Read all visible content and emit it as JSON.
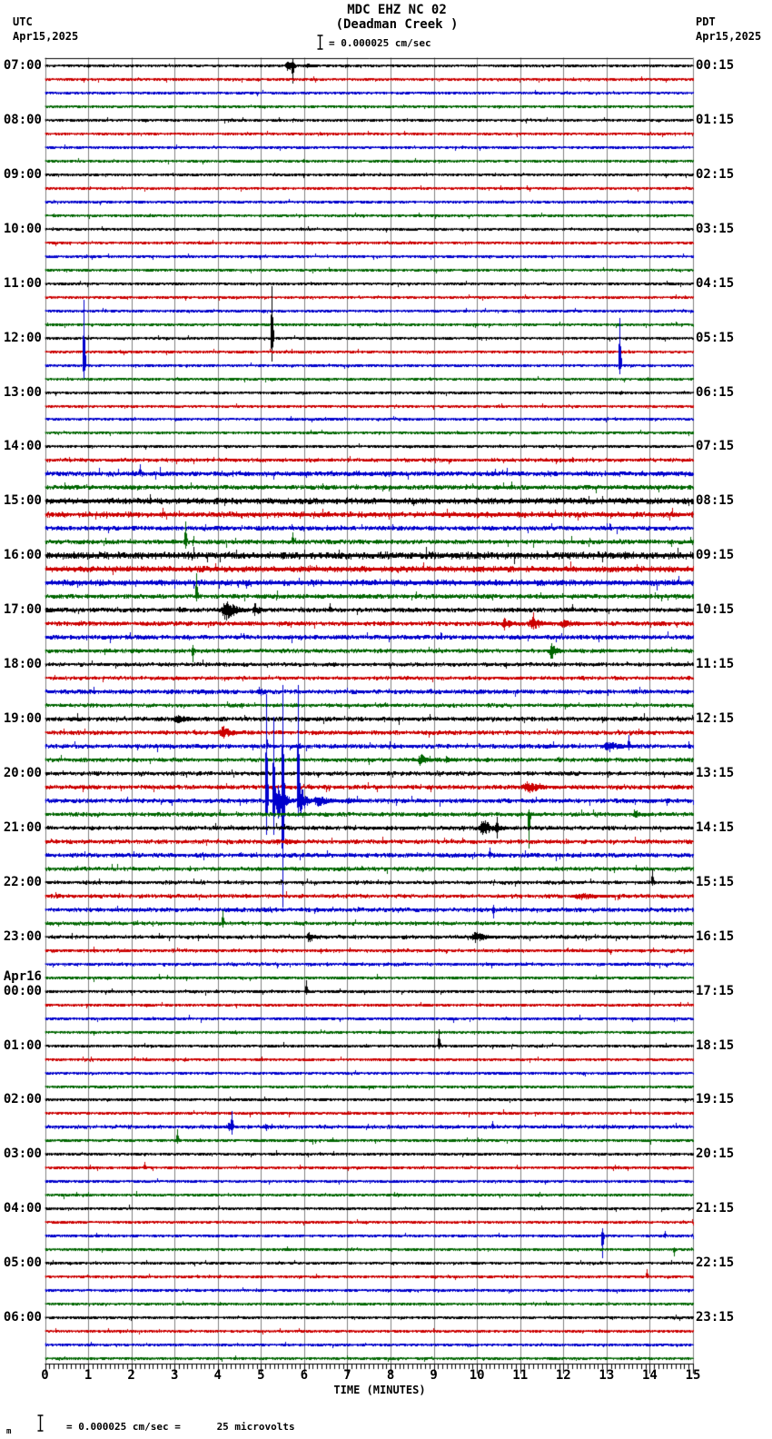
{
  "header": {
    "title": "MDC EHZ NC 02",
    "subtitle": "(Deadman Creek )",
    "scale_label": "= 0.000025 cm/sec",
    "left_tz": "UTC",
    "left_date": "Apr15,2025",
    "right_tz": "PDT",
    "right_date": "Apr15,2025"
  },
  "footer": {
    "prefix": "m",
    "text": "= 0.000025 cm/sec =      25 microvolts"
  },
  "x_axis": {
    "title": "TIME (MINUTES)",
    "ticks": [
      "0",
      "1",
      "2",
      "3",
      "4",
      "5",
      "6",
      "7",
      "8",
      "9",
      "10",
      "11",
      "12",
      "13",
      "14",
      "15"
    ],
    "minor_per_major": 10,
    "range": [
      0,
      15
    ]
  },
  "chart_data": {
    "type": "helicorder",
    "station": "MDC EHZ NC 02",
    "station_name": "Deadman Creek",
    "minutes_per_line": 15,
    "lines_per_hour": 4,
    "rows": 96,
    "grid": true,
    "grid_color": "#808080",
    "color_cycle": [
      "black",
      "red",
      "blue",
      "green"
    ],
    "colors": {
      "black": "#000000",
      "red": "#cc0000",
      "blue": "#0000cc",
      "green": "#006600"
    },
    "left_labels": [
      {
        "row": 0,
        "text": "07:00"
      },
      {
        "row": 4,
        "text": "08:00"
      },
      {
        "row": 8,
        "text": "09:00"
      },
      {
        "row": 12,
        "text": "10:00"
      },
      {
        "row": 16,
        "text": "11:00"
      },
      {
        "row": 20,
        "text": "12:00"
      },
      {
        "row": 24,
        "text": "13:00"
      },
      {
        "row": 28,
        "text": "14:00"
      },
      {
        "row": 32,
        "text": "15:00"
      },
      {
        "row": 36,
        "text": "16:00"
      },
      {
        "row": 40,
        "text": "17:00"
      },
      {
        "row": 44,
        "text": "18:00"
      },
      {
        "row": 48,
        "text": "19:00"
      },
      {
        "row": 52,
        "text": "20:00"
      },
      {
        "row": 56,
        "text": "21:00"
      },
      {
        "row": 60,
        "text": "22:00"
      },
      {
        "row": 64,
        "text": "23:00"
      },
      {
        "row": 68,
        "text": "00:00",
        "date": "Apr16"
      },
      {
        "row": 72,
        "text": "01:00"
      },
      {
        "row": 76,
        "text": "02:00"
      },
      {
        "row": 80,
        "text": "03:00"
      },
      {
        "row": 84,
        "text": "04:00"
      },
      {
        "row": 88,
        "text": "05:00"
      },
      {
        "row": 92,
        "text": "06:00"
      }
    ],
    "right_labels": [
      {
        "row": 0,
        "text": "00:15"
      },
      {
        "row": 4,
        "text": "01:15"
      },
      {
        "row": 8,
        "text": "02:15"
      },
      {
        "row": 12,
        "text": "03:15"
      },
      {
        "row": 16,
        "text": "04:15"
      },
      {
        "row": 20,
        "text": "05:15"
      },
      {
        "row": 24,
        "text": "06:15"
      },
      {
        "row": 28,
        "text": "07:15"
      },
      {
        "row": 32,
        "text": "08:15"
      },
      {
        "row": 36,
        "text": "09:15"
      },
      {
        "row": 40,
        "text": "10:15"
      },
      {
        "row": 44,
        "text": "11:15"
      },
      {
        "row": 48,
        "text": "12:15"
      },
      {
        "row": 52,
        "text": "13:15"
      },
      {
        "row": 56,
        "text": "14:15"
      },
      {
        "row": 60,
        "text": "15:15"
      },
      {
        "row": 64,
        "text": "16:15"
      },
      {
        "row": 68,
        "text": "17:15"
      },
      {
        "row": 72,
        "text": "18:15"
      },
      {
        "row": 76,
        "text": "19:15"
      },
      {
        "row": 80,
        "text": "20:15"
      },
      {
        "row": 84,
        "text": "21:15"
      },
      {
        "row": 88,
        "text": "22:15"
      },
      {
        "row": 92,
        "text": "23:15"
      }
    ],
    "noise_levels": [
      1.1,
      1.1,
      1.1,
      1.1,
      1.1,
      1.1,
      1.1,
      1.1,
      1.1,
      1.1,
      1.1,
      1.1,
      1.1,
      1.1,
      1.1,
      1.1,
      1.1,
      1.1,
      1.1,
      1.1,
      1.1,
      1.1,
      1.1,
      1.1,
      1.1,
      1.1,
      1.1,
      1.1,
      1.2,
      1.5,
      2.2,
      2.0,
      2.8,
      2.4,
      2.0,
      2.0,
      3.2,
      2.6,
      2.6,
      2.1,
      2.0,
      1.9,
      2.0,
      1.7,
      1.6,
      1.5,
      1.9,
      1.5,
      1.9,
      1.8,
      1.9,
      1.7,
      1.7,
      1.9,
      1.9,
      1.7,
      1.7,
      1.7,
      2.0,
      1.6,
      1.5,
      1.6,
      1.8,
      1.5,
      1.5,
      1.4,
      1.4,
      1.3,
      1.3,
      1.3,
      1.3,
      1.2,
      1.2,
      1.2,
      1.2,
      1.2,
      1.3,
      1.3,
      1.5,
      1.3,
      1.2,
      1.2,
      1.2,
      1.2,
      1.2,
      1.2,
      1.2,
      1.2,
      1.1,
      1.1,
      1.1,
      1.1,
      1.1,
      1.1,
      1.1,
      1.1
    ],
    "events": [
      {
        "row": 0,
        "kind": "burst",
        "t0": 5.55,
        "t1": 6.0,
        "amp": 6
      },
      {
        "row": 0,
        "kind": "spike",
        "t": 5.72,
        "up": 8,
        "dn": 20
      },
      {
        "row": 0,
        "kind": "burst",
        "t0": 6.0,
        "t1": 6.6,
        "amp": 2.5
      },
      {
        "row": 20,
        "kind": "spike",
        "t": 5.24,
        "up": 57,
        "dn": 26
      },
      {
        "row": 22,
        "kind": "spike",
        "t": 0.9,
        "up": 72,
        "dn": 15
      },
      {
        "row": 22,
        "kind": "spike",
        "t": 13.3,
        "up": 52,
        "dn": 10
      },
      {
        "row": 30,
        "kind": "spike",
        "t": 2.2,
        "up": 10,
        "dn": 3
      },
      {
        "row": 35,
        "kind": "spike",
        "t": 3.24,
        "up": 22,
        "dn": 8
      },
      {
        "row": 35,
        "kind": "spike",
        "t": 5.72,
        "up": 10,
        "dn": 3
      },
      {
        "row": 39,
        "kind": "spike",
        "t": 3.51,
        "up": 25,
        "dn": 6
      },
      {
        "row": 40,
        "kind": "burst",
        "t0": 3.05,
        "t1": 3.35,
        "amp": 4
      },
      {
        "row": 40,
        "kind": "burst",
        "t0": 4.05,
        "t1": 4.75,
        "amp": 14
      },
      {
        "row": 40,
        "kind": "burst",
        "t0": 4.78,
        "t1": 5.15,
        "amp": 9
      },
      {
        "row": 40,
        "kind": "spike",
        "t": 6.6,
        "up": 7,
        "dn": 3
      },
      {
        "row": 40,
        "kind": "spike",
        "t": 12.2,
        "up": 6,
        "dn": 2
      },
      {
        "row": 41,
        "kind": "burst",
        "t0": 10.55,
        "t1": 11.1,
        "amp": 7
      },
      {
        "row": 41,
        "kind": "burst",
        "t0": 11.15,
        "t1": 11.85,
        "amp": 8
      },
      {
        "row": 41,
        "kind": "spike",
        "t": 11.3,
        "up": 12,
        "dn": 6
      },
      {
        "row": 41,
        "kind": "burst",
        "t0": 11.85,
        "t1": 12.9,
        "amp": 5
      },
      {
        "row": 43,
        "kind": "spike",
        "t": 3.41,
        "up": 6,
        "dn": 13
      },
      {
        "row": 43,
        "kind": "burst",
        "t0": 11.65,
        "t1": 12.0,
        "amp": 11
      },
      {
        "row": 46,
        "kind": "burst",
        "t0": 4.9,
        "t1": 5.25,
        "amp": 6
      },
      {
        "row": 48,
        "kind": "burst",
        "t0": 2.9,
        "t1": 3.9,
        "amp": 5
      },
      {
        "row": 49,
        "kind": "burst",
        "t0": 4.0,
        "t1": 4.65,
        "amp": 8
      },
      {
        "row": 50,
        "kind": "spike",
        "t": 5.15,
        "up": 7,
        "dn": 3
      },
      {
        "row": 50,
        "kind": "burst",
        "t0": 12.9,
        "t1": 13.7,
        "amp": 7
      },
      {
        "row": 50,
        "kind": "spike",
        "t": 13.5,
        "up": 12,
        "dn": 5
      },
      {
        "row": 51,
        "kind": "burst",
        "t0": 8.6,
        "t1": 9.05,
        "amp": 8
      },
      {
        "row": 51,
        "kind": "burst",
        "t0": 9.25,
        "t1": 9.55,
        "amp": 5
      },
      {
        "row": 53,
        "kind": "burst",
        "t0": 11.0,
        "t1": 12.0,
        "amp": 7
      },
      {
        "row": 54,
        "kind": "spike",
        "t": 5.11,
        "up": 117,
        "dn": 38
      },
      {
        "row": 54,
        "kind": "spike",
        "t": 5.28,
        "up": 92,
        "dn": 38
      },
      {
        "row": 54,
        "kind": "spike",
        "t": 5.49,
        "up": 127,
        "dn": 118
      },
      {
        "row": 54,
        "kind": "spike",
        "t": 5.85,
        "up": 127,
        "dn": 18
      },
      {
        "row": 54,
        "kind": "burst",
        "t0": 5.3,
        "t1": 5.8,
        "amp": 22
      },
      {
        "row": 54,
        "kind": "burst",
        "t0": 5.85,
        "t1": 6.2,
        "amp": 20
      },
      {
        "row": 54,
        "kind": "burst",
        "t0": 6.2,
        "t1": 6.9,
        "amp": 8
      },
      {
        "row": 54,
        "kind": "burst",
        "t0": 6.9,
        "t1": 7.7,
        "amp": 3.5
      },
      {
        "row": 55,
        "kind": "spike",
        "t": 11.19,
        "up": 5,
        "dn": 38
      },
      {
        "row": 55,
        "kind": "burst",
        "t0": 13.6,
        "t1": 13.95,
        "amp": 6
      },
      {
        "row": 56,
        "kind": "burst",
        "t0": 10.0,
        "t1": 10.95,
        "amp": 9
      },
      {
        "row": 56,
        "kind": "spike",
        "t": 10.45,
        "up": 12,
        "dn": 12
      },
      {
        "row": 57,
        "kind": "burst",
        "t0": 5.5,
        "t1": 5.95,
        "amp": 5
      },
      {
        "row": 58,
        "kind": "spike",
        "t": 10.3,
        "up": 8,
        "dn": 4
      },
      {
        "row": 60,
        "kind": "spike",
        "t": 14.05,
        "up": 14,
        "dn": 4
      },
      {
        "row": 61,
        "kind": "burst",
        "t0": 12.2,
        "t1": 13.3,
        "amp": 5
      },
      {
        "row": 62,
        "kind": "spike",
        "t": 10.37,
        "up": 5,
        "dn": 10
      },
      {
        "row": 63,
        "kind": "spike",
        "t": 4.1,
        "up": 14,
        "dn": 5
      },
      {
        "row": 64,
        "kind": "burst",
        "t0": 6.05,
        "t1": 6.4,
        "amp": 8
      },
      {
        "row": 64,
        "kind": "burst",
        "t0": 9.85,
        "t1": 10.5,
        "amp": 7
      },
      {
        "row": 68,
        "kind": "spike",
        "t": 6.04,
        "up": 12,
        "dn": 4
      },
      {
        "row": 72,
        "kind": "spike",
        "t": 9.11,
        "up": 18,
        "dn": 4
      },
      {
        "row": 78,
        "kind": "spike",
        "t": 4.32,
        "up": 17,
        "dn": 9
      },
      {
        "row": 78,
        "kind": "burst",
        "t0": 4.2,
        "t1": 4.5,
        "amp": 6
      },
      {
        "row": 78,
        "kind": "burst",
        "t0": 5.05,
        "t1": 5.3,
        "amp": 4
      },
      {
        "row": 78,
        "kind": "spike",
        "t": 10.35,
        "up": 6,
        "dn": 3
      },
      {
        "row": 79,
        "kind": "spike",
        "t": 3.06,
        "up": 12,
        "dn": 4
      },
      {
        "row": 81,
        "kind": "spike",
        "t": 2.3,
        "up": 6,
        "dn": 2
      },
      {
        "row": 86,
        "kind": "spike",
        "t": 12.9,
        "up": 8,
        "dn": 25
      },
      {
        "row": 86,
        "kind": "spike",
        "t": 14.35,
        "up": 5,
        "dn": 3
      },
      {
        "row": 87,
        "kind": "spike",
        "t": 14.55,
        "up": 2,
        "dn": 8
      },
      {
        "row": 89,
        "kind": "spike",
        "t": 13.93,
        "up": 8,
        "dn": 2
      }
    ]
  }
}
